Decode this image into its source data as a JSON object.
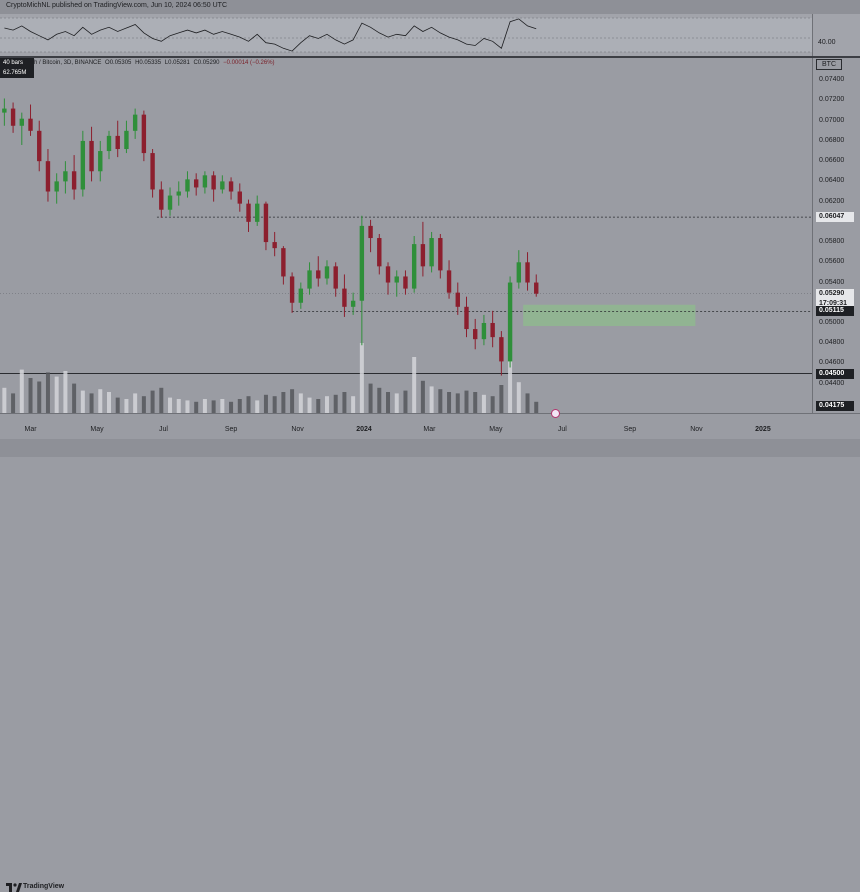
{
  "header": {
    "attribution": "CryptoMichNL published on TradingView.com, Jun 10, 2024 06:50 UTC"
  },
  "legend": {
    "bars_tag": "40 bars",
    "volume_tag": "62.765M",
    "symbol_line": "h / Bitcoin, 3D, BINANCE",
    "open": "O0.05305",
    "high": "H0.05335",
    "low": "L0.05281",
    "close": "C0.05290",
    "change": "−0.00014 (−0.26%)"
  },
  "rsi": {
    "level_label": "40.00"
  },
  "price_scale": {
    "currency": "BTC",
    "ticks": [
      "0.07400",
      "0.07200",
      "0.07000",
      "0.06800",
      "0.06600",
      "0.06400",
      "0.06200",
      "0.05800",
      "0.05600",
      "0.05400",
      "0.05000",
      "0.04800",
      "0.04600",
      "0.04400"
    ],
    "labels": [
      {
        "text": "0.06047",
        "style": "light"
      },
      {
        "text": "0.05290",
        "style": "light"
      },
      {
        "text": "17:09:31",
        "style": "light"
      },
      {
        "text": "0.05115",
        "style": "dark"
      },
      {
        "text": "0.04500",
        "style": "dark"
      },
      {
        "text": "0.04175",
        "style": "dark"
      }
    ]
  },
  "time_axis": {
    "ticks": [
      {
        "label": "Mar",
        "bold": false
      },
      {
        "label": "May",
        "bold": false
      },
      {
        "label": "Jul",
        "bold": false
      },
      {
        "label": "Sep",
        "bold": false
      },
      {
        "label": "Nov",
        "bold": false
      },
      {
        "label": "2024",
        "bold": true
      },
      {
        "label": "Mar",
        "bold": false
      },
      {
        "label": "May",
        "bold": false
      },
      {
        "label": "Jul",
        "bold": false
      },
      {
        "label": "Sep",
        "bold": false
      },
      {
        "label": "Nov",
        "bold": false
      },
      {
        "label": "2025",
        "bold": true
      }
    ]
  },
  "footer": {
    "brand": "TradingView"
  },
  "colors": {
    "up": "#2f8f3a",
    "down": "#8c1f2e",
    "volume_up": "#d4d5d9",
    "volume_down": "#55575c",
    "demand_zone": "#8fb88f",
    "line_dark": "#2a2c30",
    "background": "#9a9ca3"
  },
  "chart_data": {
    "type": "candlestick",
    "ylim": [
      0.0411,
      0.0762
    ],
    "levels": [
      0.06047,
      0.05115,
      0.045
    ],
    "current_price": 0.0529,
    "demand_zone": {
      "low": 0.0497,
      "high": 0.0518,
      "from": "2024-05-26",
      "to": "2024-10-31"
    },
    "candles": [
      [
        "2023-02-05",
        0.0708,
        0.0722,
        0.0695,
        0.0712
      ],
      [
        "2023-02-13",
        0.0712,
        0.0718,
        0.0688,
        0.0695
      ],
      [
        "2023-02-21",
        0.0695,
        0.0708,
        0.0676,
        0.0702
      ],
      [
        "2023-03-01",
        0.0702,
        0.0716,
        0.0685,
        0.069
      ],
      [
        "2023-03-09",
        0.069,
        0.07,
        0.065,
        0.066
      ],
      [
        "2023-03-17",
        0.066,
        0.0672,
        0.062,
        0.063
      ],
      [
        "2023-03-25",
        0.063,
        0.0648,
        0.0618,
        0.064
      ],
      [
        "2023-04-02",
        0.064,
        0.066,
        0.0628,
        0.065
      ],
      [
        "2023-04-10",
        0.065,
        0.0666,
        0.0622,
        0.0632
      ],
      [
        "2023-04-18",
        0.0632,
        0.069,
        0.0625,
        0.068
      ],
      [
        "2023-04-26",
        0.068,
        0.0694,
        0.064,
        0.065
      ],
      [
        "2023-05-04",
        0.065,
        0.068,
        0.064,
        0.067
      ],
      [
        "2023-05-12",
        0.067,
        0.069,
        0.0662,
        0.0685
      ],
      [
        "2023-05-20",
        0.0685,
        0.07,
        0.0664,
        0.0672
      ],
      [
        "2023-05-28",
        0.0672,
        0.07,
        0.0668,
        0.069
      ],
      [
        "2023-06-05",
        0.069,
        0.0712,
        0.0682,
        0.0706
      ],
      [
        "2023-06-13",
        0.0706,
        0.071,
        0.066,
        0.0668
      ],
      [
        "2023-06-21",
        0.0668,
        0.0672,
        0.0624,
        0.0632
      ],
      [
        "2023-06-29",
        0.0632,
        0.064,
        0.0604,
        0.0612
      ],
      [
        "2023-07-07",
        0.0612,
        0.0634,
        0.0606,
        0.0626
      ],
      [
        "2023-07-15",
        0.0626,
        0.064,
        0.0616,
        0.063
      ],
      [
        "2023-07-23",
        0.063,
        0.065,
        0.0624,
        0.0642
      ],
      [
        "2023-07-31",
        0.0642,
        0.0648,
        0.0626,
        0.0634
      ],
      [
        "2023-08-08",
        0.0634,
        0.065,
        0.0628,
        0.0646
      ],
      [
        "2023-08-16",
        0.0646,
        0.065,
        0.062,
        0.0632
      ],
      [
        "2023-08-24",
        0.0632,
        0.0646,
        0.0628,
        0.064
      ],
      [
        "2023-09-01",
        0.064,
        0.0644,
        0.0622,
        0.063
      ],
      [
        "2023-09-09",
        0.063,
        0.0638,
        0.061,
        0.0618
      ],
      [
        "2023-09-17",
        0.0618,
        0.0622,
        0.059,
        0.06
      ],
      [
        "2023-09-25",
        0.06,
        0.0626,
        0.0596,
        0.0618
      ],
      [
        "2023-10-03",
        0.0618,
        0.062,
        0.0572,
        0.058
      ],
      [
        "2023-10-11",
        0.058,
        0.059,
        0.0566,
        0.0574
      ],
      [
        "2023-10-19",
        0.0574,
        0.0576,
        0.0538,
        0.0546
      ],
      [
        "2023-10-27",
        0.0546,
        0.055,
        0.051,
        0.052
      ],
      [
        "2023-11-04",
        0.052,
        0.054,
        0.0514,
        0.0534
      ],
      [
        "2023-11-12",
        0.0534,
        0.056,
        0.0528,
        0.0552
      ],
      [
        "2023-11-20",
        0.0552,
        0.0566,
        0.0536,
        0.0544
      ],
      [
        "2023-11-28",
        0.0544,
        0.0562,
        0.0538,
        0.0556
      ],
      [
        "2023-12-06",
        0.0556,
        0.056,
        0.0526,
        0.0534
      ],
      [
        "2023-12-14",
        0.0534,
        0.0548,
        0.0506,
        0.0516
      ],
      [
        "2023-12-22",
        0.0516,
        0.053,
        0.0508,
        0.0522
      ],
      [
        "2023-12-30",
        0.0522,
        0.0606,
        0.0478,
        0.0596
      ],
      [
        "2024-01-07",
        0.0596,
        0.0602,
        0.057,
        0.0584
      ],
      [
        "2024-01-15",
        0.0584,
        0.0588,
        0.0548,
        0.0556
      ],
      [
        "2024-01-23",
        0.0556,
        0.056,
        0.0528,
        0.054
      ],
      [
        "2024-01-31",
        0.054,
        0.0552,
        0.0526,
        0.0546
      ],
      [
        "2024-02-08",
        0.0546,
        0.0552,
        0.0528,
        0.0534
      ],
      [
        "2024-02-16",
        0.0534,
        0.0586,
        0.053,
        0.0578
      ],
      [
        "2024-02-24",
        0.0578,
        0.06,
        0.0546,
        0.0556
      ],
      [
        "2024-03-03",
        0.0556,
        0.059,
        0.055,
        0.0584
      ],
      [
        "2024-03-11",
        0.0584,
        0.0588,
        0.0544,
        0.0552
      ],
      [
        "2024-03-19",
        0.0552,
        0.0562,
        0.0524,
        0.053
      ],
      [
        "2024-03-27",
        0.053,
        0.054,
        0.0508,
        0.0516
      ],
      [
        "2024-04-04",
        0.0516,
        0.0526,
        0.0486,
        0.0494
      ],
      [
        "2024-04-12",
        0.0494,
        0.0504,
        0.0474,
        0.0484
      ],
      [
        "2024-04-20",
        0.0484,
        0.0508,
        0.0478,
        0.05
      ],
      [
        "2024-04-28",
        0.05,
        0.0512,
        0.0476,
        0.0486
      ],
      [
        "2024-05-06",
        0.0486,
        0.0492,
        0.0448,
        0.0462
      ],
      [
        "2024-05-14",
        0.0462,
        0.0546,
        0.0456,
        0.054
      ],
      [
        "2024-05-22",
        0.054,
        0.0572,
        0.0534,
        0.056
      ],
      [
        "2024-05-30",
        0.056,
        0.057,
        0.0532,
        0.054
      ],
      [
        "2024-06-07",
        0.054,
        0.0548,
        0.0526,
        0.0529
      ]
    ],
    "volume_ratio": [
      0.36,
      0.28,
      0.62,
      0.5,
      0.45,
      0.58,
      0.52,
      0.6,
      0.42,
      0.32,
      0.28,
      0.34,
      0.3,
      0.22,
      0.2,
      0.28,
      0.24,
      0.32,
      0.36,
      0.22,
      0.2,
      0.18,
      0.16,
      0.2,
      0.18,
      0.2,
      0.16,
      0.2,
      0.24,
      0.18,
      0.26,
      0.24,
      0.3,
      0.34,
      0.28,
      0.22,
      0.2,
      0.24,
      0.26,
      0.3,
      0.24,
      1.0,
      0.42,
      0.36,
      0.3,
      0.28,
      0.32,
      0.8,
      0.46,
      0.38,
      0.34,
      0.3,
      0.28,
      0.32,
      0.3,
      0.26,
      0.24,
      0.4,
      0.96,
      0.44,
      0.28,
      0.16
    ],
    "rsi": [
      55,
      52,
      58,
      50,
      44,
      38,
      46,
      50,
      44,
      56,
      46,
      52,
      56,
      50,
      55,
      60,
      48,
      40,
      36,
      44,
      48,
      52,
      48,
      52,
      46,
      50,
      46,
      42,
      36,
      46,
      34,
      32,
      26,
      22,
      34,
      44,
      40,
      46,
      38,
      32,
      38,
      62,
      56,
      48,
      42,
      46,
      44,
      58,
      50,
      56,
      48,
      42,
      38,
      32,
      30,
      40,
      36,
      26,
      64,
      68,
      58,
      54
    ]
  }
}
